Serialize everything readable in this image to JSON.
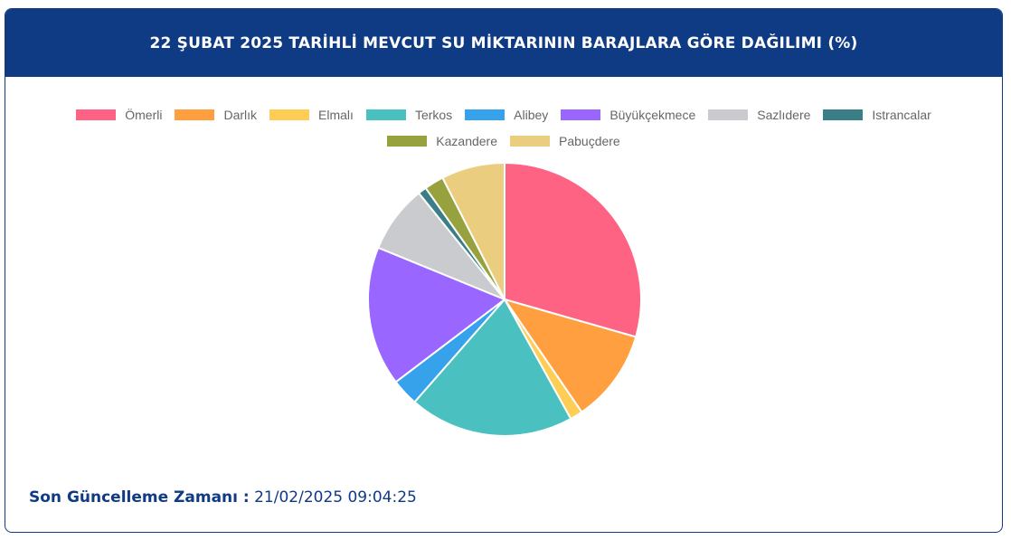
{
  "header": {
    "title": "22 ŞUBAT 2025 TARİHLİ MEVCUT SU MİKTARININ BARAJLARA GÖRE DAĞILIMI (%)"
  },
  "chart_data": {
    "type": "pie",
    "title": "22 ŞUBAT 2025 TARİHLİ MEVCUT SU MİKTARININ BARAJLARA GÖRE DAĞILIMI (%)",
    "legend_position": "top",
    "categories": [
      "Ömerli",
      "Darlık",
      "Elmalı",
      "Terkos",
      "Alibey",
      "Büyükçekmece",
      "Sazlıdere",
      "Istrancalar",
      "Kazandere",
      "Pabuçdere"
    ],
    "values": [
      29.4,
      11.0,
      1.5,
      19.5,
      3.2,
      16.5,
      8.0,
      1.0,
      2.3,
      7.5
    ],
    "colors": [
      "#ff6384",
      "#ff9f40",
      "#ffcd56",
      "#4bc0c0",
      "#36a2eb",
      "#9966ff",
      "#c9cbcf",
      "#3b7f86",
      "#97a13d",
      "#ebcd80"
    ]
  },
  "footer": {
    "label": "Son Güncelleme Zamanı :",
    "value": "21/02/2025 09:04:25"
  }
}
